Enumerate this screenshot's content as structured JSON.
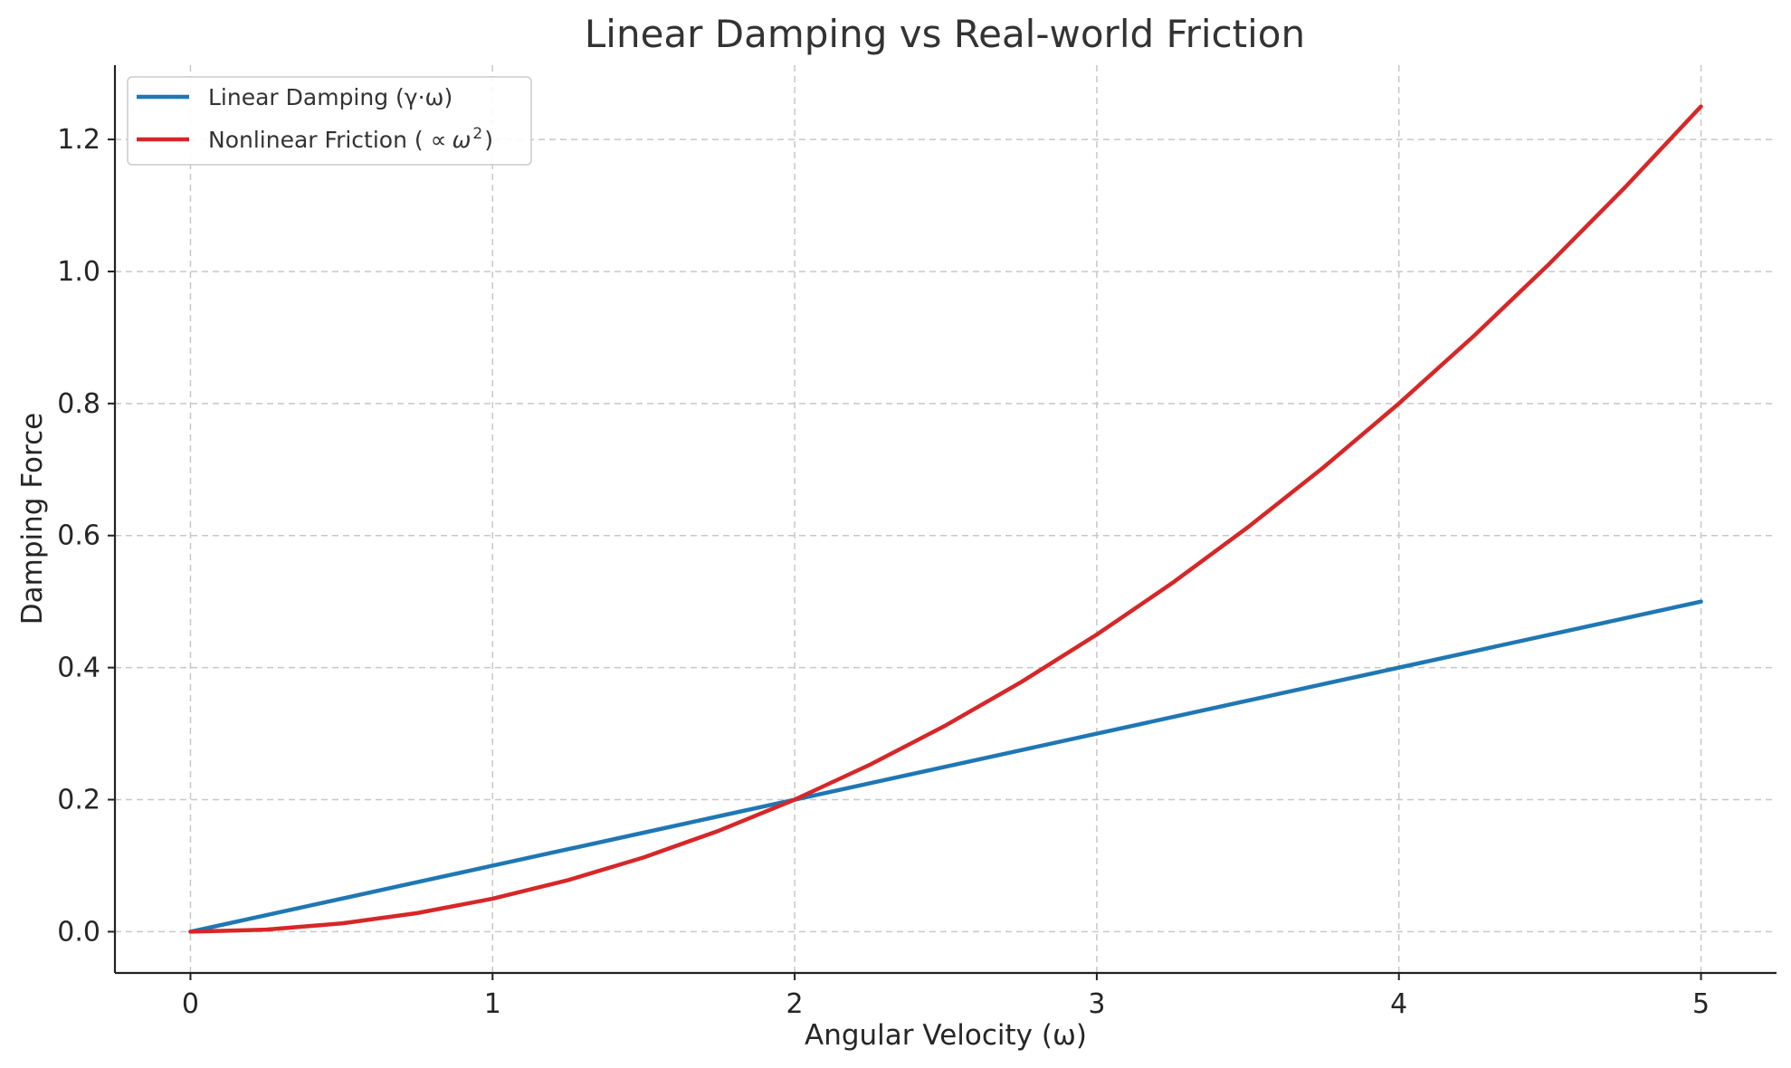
{
  "chart_data": {
    "type": "line",
    "title": "Linear Damping vs Real-world Friction",
    "xlabel": "Angular Velocity (ω)",
    "ylabel": "Damping Force",
    "xlim": [
      -0.25,
      5.25
    ],
    "ylim": [
      -0.0625,
      1.3125
    ],
    "xticks": [
      0,
      1,
      2,
      3,
      4,
      5
    ],
    "xtick_labels": [
      "0",
      "1",
      "2",
      "3",
      "4",
      "5"
    ],
    "yticks": [
      0.0,
      0.2,
      0.4,
      0.6,
      0.8,
      1.0,
      1.2
    ],
    "ytick_labels": [
      "0.0",
      "0.2",
      "0.4",
      "0.6",
      "0.8",
      "1.0",
      "1.2"
    ],
    "grid": true,
    "legend_position": "top-left",
    "x": [
      0,
      0.25,
      0.5,
      0.75,
      1,
      1.25,
      1.5,
      1.75,
      2,
      2.25,
      2.5,
      2.75,
      3,
      3.25,
      3.5,
      3.75,
      4,
      4.25,
      4.5,
      4.75,
      5
    ],
    "series": [
      {
        "name": "Linear Damping (γ·ω)",
        "color": "#1f77b4",
        "values": [
          0,
          0.025,
          0.05,
          0.075,
          0.1,
          0.125,
          0.15,
          0.175,
          0.2,
          0.225,
          0.25,
          0.275,
          0.3,
          0.325,
          0.35,
          0.375,
          0.4,
          0.425,
          0.45,
          0.475,
          0.5
        ]
      },
      {
        "name": "Nonlinear Friction (",
        "name_symbol": "∝",
        "name_var": "ω",
        "name_exp": "2",
        "name_close": ")",
        "color": "#d62728",
        "values": [
          0,
          0.003125,
          0.0125,
          0.028125,
          0.05,
          0.078125,
          0.1125,
          0.153125,
          0.2,
          0.253125,
          0.3125,
          0.378125,
          0.45,
          0.528125,
          0.6125,
          0.703125,
          0.8,
          0.903125,
          1.0125,
          1.128125,
          1.25
        ]
      }
    ]
  }
}
